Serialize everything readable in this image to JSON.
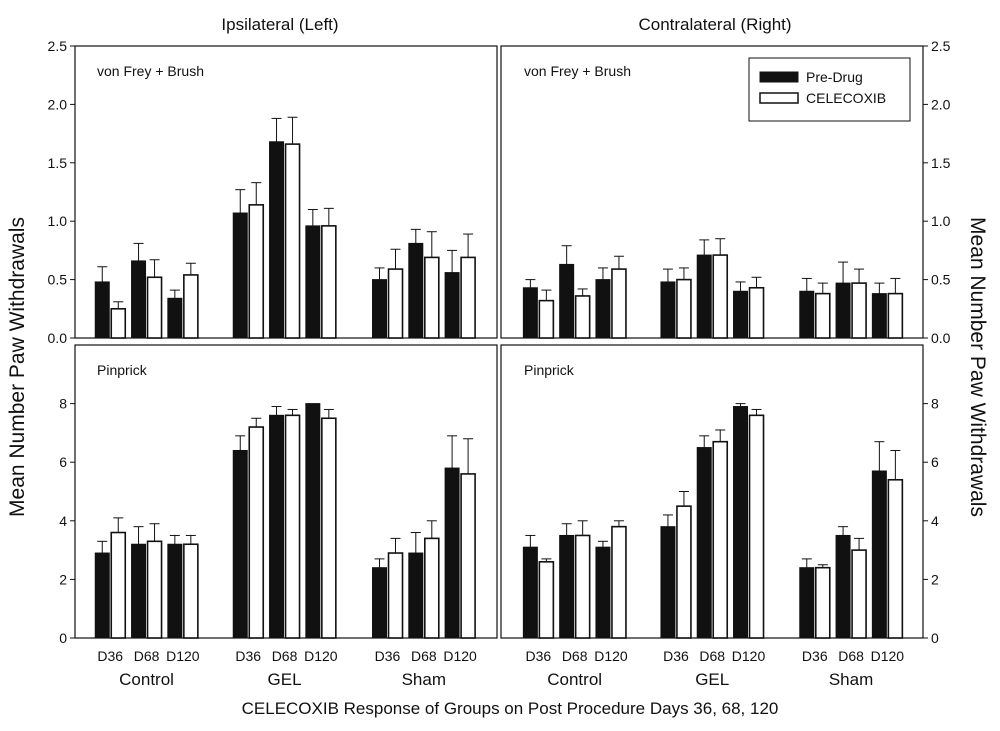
{
  "figure": {
    "left_title": "Ipsilateral (Left)",
    "right_title": "Contralateral (Right)",
    "ylabel": "Mean Number Paw Withdrawals",
    "xlabel": "CELECOXIB Response of Groups on Post Procedure Days 36, 68, 120",
    "legend": [
      "Pre-Drug",
      "CELECOXIB"
    ],
    "legend_position": "top-right of upper-right panel",
    "colors": {
      "pre_drug": "#111111",
      "celecoxib": "#ffffff",
      "axis": "#111111"
    }
  },
  "chart_data": [
    {
      "type": "bar",
      "panel": "upper-left",
      "side": "Ipsilateral (Left)",
      "annotation": "von Frey + Brush",
      "groups": [
        "Control",
        "GEL",
        "Sham"
      ],
      "days": [
        "D36",
        "D68",
        "D120"
      ],
      "ylim": [
        0,
        2.5
      ],
      "yticks": [
        "0.0",
        "0.5",
        "1.0",
        "1.5",
        "2.0",
        "2.5"
      ],
      "series": [
        {
          "name": "Pre-Drug",
          "values": [
            0.48,
            0.66,
            0.34,
            1.07,
            1.68,
            0.96,
            0.5,
            0.81,
            0.56
          ],
          "errors": [
            0.13,
            0.15,
            0.07,
            0.2,
            0.2,
            0.14,
            0.1,
            0.12,
            0.19
          ]
        },
        {
          "name": "CELECOXIB",
          "values": [
            0.25,
            0.52,
            0.54,
            1.14,
            1.66,
            0.96,
            0.59,
            0.69,
            0.69
          ],
          "errors": [
            0.06,
            0.15,
            0.1,
            0.19,
            0.23,
            0.15,
            0.17,
            0.22,
            0.2
          ]
        }
      ]
    },
    {
      "type": "bar",
      "panel": "upper-right",
      "side": "Contralateral (Right)",
      "annotation": "von Frey + Brush",
      "groups": [
        "Control",
        "GEL",
        "Sham"
      ],
      "days": [
        "D36",
        "D68",
        "D120"
      ],
      "ylim": [
        0,
        2.5
      ],
      "yticks": [
        "0.0",
        "0.5",
        "1.0",
        "1.5",
        "2.0",
        "2.5"
      ],
      "series": [
        {
          "name": "Pre-Drug",
          "values": [
            0.43,
            0.63,
            0.5,
            0.48,
            0.71,
            0.4,
            0.4,
            0.47,
            0.38
          ],
          "errors": [
            0.07,
            0.16,
            0.1,
            0.11,
            0.13,
            0.08,
            0.11,
            0.18,
            0.09
          ]
        },
        {
          "name": "CELECOXIB",
          "values": [
            0.32,
            0.36,
            0.59,
            0.5,
            0.71,
            0.43,
            0.38,
            0.47,
            0.38
          ],
          "errors": [
            0.09,
            0.06,
            0.11,
            0.1,
            0.14,
            0.09,
            0.09,
            0.12,
            0.13
          ]
        }
      ]
    },
    {
      "type": "bar",
      "panel": "lower-left",
      "side": "Ipsilateral (Left)",
      "annotation": "Pinprick",
      "groups": [
        "Control",
        "GEL",
        "Sham"
      ],
      "days": [
        "D36",
        "D68",
        "D120"
      ],
      "ylim": [
        0,
        10
      ],
      "yticks": [
        "0",
        "2",
        "4",
        "6",
        "8"
      ],
      "series": [
        {
          "name": "Pre-Drug",
          "values": [
            2.9,
            3.2,
            3.2,
            6.4,
            7.6,
            8.0,
            2.4,
            2.9,
            5.8
          ],
          "errors": [
            0.4,
            0.6,
            0.3,
            0.5,
            0.3,
            0.0,
            0.3,
            0.7,
            1.1
          ]
        },
        {
          "name": "CELECOXIB",
          "values": [
            3.6,
            3.3,
            3.2,
            7.2,
            7.6,
            7.5,
            2.9,
            3.4,
            5.6
          ],
          "errors": [
            0.5,
            0.6,
            0.3,
            0.3,
            0.2,
            0.3,
            0.5,
            0.6,
            1.2
          ]
        }
      ]
    },
    {
      "type": "bar",
      "panel": "lower-right",
      "side": "Contralateral (Right)",
      "annotation": "Pinprick",
      "groups": [
        "Control",
        "GEL",
        "Sham"
      ],
      "days": [
        "D36",
        "D68",
        "D120"
      ],
      "ylim": [
        0,
        10
      ],
      "yticks": [
        "0",
        "2",
        "4",
        "6",
        "8"
      ],
      "series": [
        {
          "name": "Pre-Drug",
          "values": [
            3.1,
            3.5,
            3.1,
            3.8,
            6.5,
            7.9,
            2.4,
            3.5,
            5.7
          ],
          "errors": [
            0.4,
            0.4,
            0.2,
            0.4,
            0.4,
            0.1,
            0.3,
            0.3,
            1.0
          ]
        },
        {
          "name": "CELECOXIB",
          "values": [
            2.6,
            3.5,
            3.8,
            4.5,
            6.7,
            7.6,
            2.4,
            3.0,
            5.4
          ],
          "errors": [
            0.1,
            0.5,
            0.2,
            0.5,
            0.4,
            0.2,
            0.1,
            0.4,
            1.0
          ]
        }
      ]
    }
  ]
}
